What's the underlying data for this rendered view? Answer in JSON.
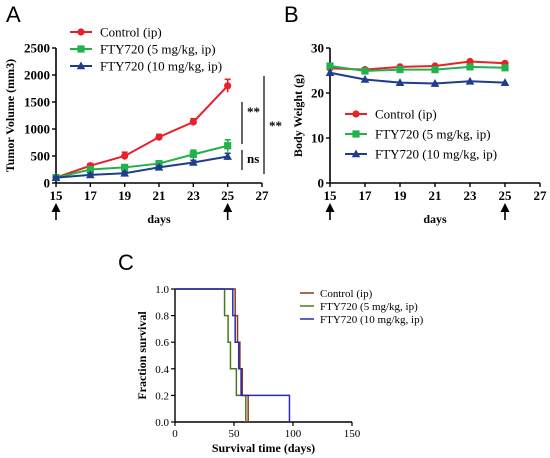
{
  "chart_data": [
    {
      "panel": "A",
      "type": "line",
      "xlabel": "days",
      "ylabel": "Tumor Volume (mm3)",
      "xlim": [
        15,
        27
      ],
      "ylim": [
        0,
        2500
      ],
      "xticks": [
        "15",
        "17",
        "19",
        "21",
        "23",
        "25",
        "27"
      ],
      "yticks": [
        "0",
        "500",
        "1000",
        "1500",
        "2000",
        "2500"
      ],
      "x": [
        15,
        17,
        19,
        21,
        23,
        25
      ],
      "series": [
        {
          "name": "Control (ip)",
          "color": "#e8202a",
          "marker": "circle",
          "values": [
            100,
            320,
            500,
            850,
            1130,
            1800
          ],
          "errors": [
            20,
            40,
            70,
            50,
            60,
            120
          ]
        },
        {
          "name": "FTY720 (5 mg/kg, ip)",
          "color": "#22b24c",
          "marker": "square",
          "values": [
            100,
            250,
            290,
            360,
            530,
            690
          ],
          "errors": [
            20,
            30,
            40,
            40,
            80,
            110
          ]
        },
        {
          "name": "FTY720 (10 mg/kg, ip)",
          "color": "#1f3d8c",
          "marker": "triangle",
          "values": [
            100,
            150,
            180,
            290,
            380,
            490
          ],
          "errors": [
            20,
            30,
            30,
            30,
            40,
            60
          ]
        }
      ],
      "arrows_at_x": [
        15,
        25
      ],
      "annotations": [
        "**",
        "**",
        "ns"
      ],
      "grid": false,
      "legend": "top-left"
    },
    {
      "panel": "B",
      "type": "line",
      "xlabel": "days",
      "ylabel": "Body Weight (g)",
      "xlim": [
        15,
        27
      ],
      "ylim": [
        0,
        30
      ],
      "xticks": [
        "15",
        "17",
        "19",
        "21",
        "23",
        "25",
        "27"
      ],
      "yticks": [
        "0",
        "10",
        "20",
        "30"
      ],
      "x": [
        15,
        17,
        19,
        21,
        23,
        25
      ],
      "series": [
        {
          "name": "Control (ip)",
          "color": "#e8202a",
          "marker": "circle",
          "values": [
            25.5,
            25.2,
            25.8,
            26.0,
            27.0,
            26.6
          ]
        },
        {
          "name": "FTY720 (5 mg/kg, ip)",
          "color": "#22b24c",
          "marker": "square",
          "values": [
            26.0,
            24.9,
            25.2,
            25.2,
            25.8,
            25.6
          ]
        },
        {
          "name": "FTY720 (10 mg/kg, ip)",
          "color": "#1f3d8c",
          "marker": "triangle",
          "values": [
            24.5,
            23.0,
            22.3,
            22.1,
            22.6,
            22.3
          ]
        }
      ],
      "arrows_at_x": [
        15,
        25
      ],
      "grid": false,
      "legend": "center-right"
    },
    {
      "panel": "C",
      "type": "line",
      "xlabel": "Survival time (days)",
      "ylabel": "Fraction survival",
      "xlim": [
        0,
        150
      ],
      "ylim": [
        0,
        1
      ],
      "xticks": [
        "0",
        "50",
        "100",
        "150"
      ],
      "yticks": [
        "0.0",
        "0.2",
        "0.4",
        "0.6",
        "0.8",
        "1.0"
      ],
      "series": [
        {
          "name": "Control (ip)",
          "color": "#8b3a1a",
          "steps": [
            [
              0,
              1.0
            ],
            [
              51,
              0.8
            ],
            [
              53,
              0.6
            ],
            [
              55,
              0.4
            ],
            [
              57,
              0.2
            ],
            [
              62,
              0.0
            ]
          ]
        },
        {
          "name": "FTY720 (5 mg/kg, ip)",
          "color": "#4a7a1e",
          "steps": [
            [
              0,
              1.0
            ],
            [
              42,
              0.8
            ],
            [
              45,
              0.6
            ],
            [
              47,
              0.4
            ],
            [
              52,
              0.2
            ],
            [
              60,
              0.0
            ]
          ]
        },
        {
          "name": "FTY720 (10 mg/kg, ip)",
          "color": "#2a2ab0",
          "steps": [
            [
              0,
              1.0
            ],
            [
              49,
              0.8
            ],
            [
              51,
              0.6
            ],
            [
              54,
              0.4
            ],
            [
              56,
              0.2
            ],
            [
              97,
              0.0
            ]
          ]
        }
      ],
      "grid": false,
      "legend": "top-right"
    }
  ]
}
